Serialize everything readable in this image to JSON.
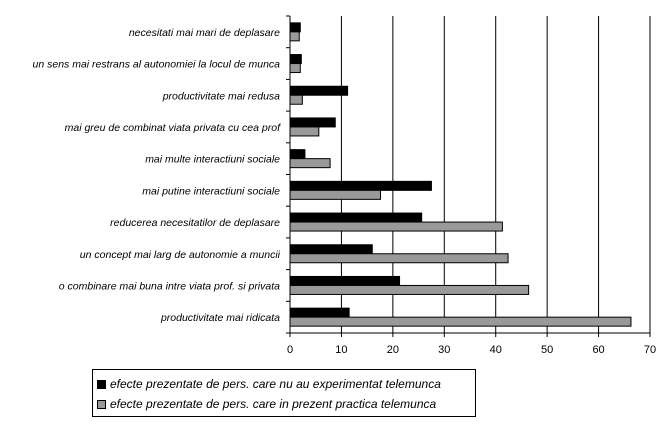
{
  "chart_data": {
    "type": "bar",
    "orientation": "horizontal",
    "title": "",
    "xlabel": "",
    "ylabel": "",
    "xlim": [
      0,
      70
    ],
    "x_ticks": [
      "0",
      "10",
      "20",
      "30",
      "40",
      "50",
      "60",
      "70"
    ],
    "grid": "vertical major gridlines",
    "legend_position": "bottom-left",
    "categories": [
      "necesitati mai mari de deplasare",
      "un sens mai restrans al autonomiei la locul de munca",
      "productivitate mai redusa",
      "mai greu de combinat viata privata cu cea prof",
      "mai multe interactiuni sociale",
      "mai putine interactiuni sociale",
      "reducerea necesitatilor de deplasare",
      "un concept mai larg de autonomie a muncii",
      "o combinare mai buna intre viata prof. si privata",
      "productivitate mai ridicata"
    ],
    "series": [
      {
        "name": "efecte prezentate de pers. care nu au experimentat telemunca",
        "color": "#000000",
        "values": [
          2,
          2.2,
          11.2,
          8.8,
          2.9,
          27.5,
          25.6,
          16,
          21.3,
          11.5
        ]
      },
      {
        "name": "efecte prezentate de pers. care in prezent practica telemunca",
        "color": "#999999",
        "values": [
          1.8,
          2,
          2.4,
          5.6,
          7.8,
          17.6,
          41.3,
          42.4,
          46.4,
          66.3
        ]
      }
    ]
  }
}
